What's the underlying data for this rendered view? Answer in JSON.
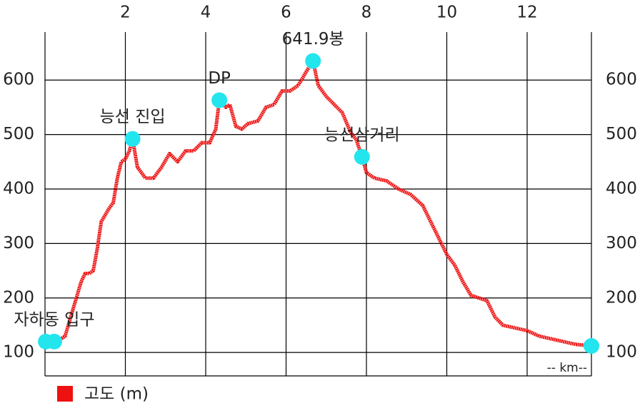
{
  "chart_data": {
    "type": "line",
    "xlabel": "-- km--",
    "xlim": [
      0,
      13.6
    ],
    "ylim": [
      57,
      688
    ],
    "xticks": [
      2,
      4,
      6,
      8,
      10,
      12
    ],
    "yticks": [
      100,
      200,
      300,
      400,
      500,
      600
    ],
    "grid": true,
    "x": [
      0.3,
      0.5,
      0.7,
      0.9,
      1.0,
      1.1,
      1.2,
      1.3,
      1.4,
      1.6,
      1.7,
      1.8,
      1.9,
      2.0,
      2.1,
      2.18,
      2.3,
      2.5,
      2.7,
      2.9,
      3.1,
      3.3,
      3.5,
      3.7,
      3.9,
      4.1,
      4.25,
      4.34,
      4.5,
      4.6,
      4.75,
      4.9,
      5.05,
      5.3,
      5.5,
      5.7,
      5.9,
      6.1,
      6.3,
      6.5,
      6.67,
      6.8,
      7.0,
      7.2,
      7.4,
      7.6,
      7.75,
      7.89,
      8.0,
      8.2,
      8.5,
      8.8,
      9.1,
      9.4,
      9.6,
      9.8,
      10.0,
      10.2,
      10.4,
      10.6,
      10.8,
      11.0,
      11.2,
      11.4,
      11.7,
      12.0,
      12.3,
      12.6,
      12.9,
      13.2,
      13.6
    ],
    "series": [
      {
        "name": "고도 (m)",
        "color": "#ee1111",
        "values": [
          120,
          130,
          180,
          230,
          245,
          245,
          250,
          290,
          340,
          365,
          375,
          420,
          450,
          455,
          470,
          492,
          440,
          420,
          420,
          440,
          465,
          450,
          470,
          470,
          485,
          485,
          510,
          563,
          550,
          555,
          515,
          510,
          520,
          525,
          550,
          555,
          580,
          580,
          590,
          615,
          635,
          590,
          570,
          555,
          540,
          505,
          490,
          459,
          430,
          420,
          415,
          400,
          390,
          370,
          340,
          310,
          280,
          260,
          230,
          205,
          200,
          195,
          165,
          150,
          145,
          140,
          130,
          125,
          120,
          115,
          112
        ]
      }
    ],
    "markers": {
      "color": "#22e5ee",
      "x": [
        0.02,
        0.23,
        2.18,
        4.34,
        6.67,
        7.89,
        13.6
      ],
      "values": [
        120,
        120,
        492,
        563,
        635,
        459,
        112
      ],
      "labels": [
        null,
        "자하동 입구",
        "능선 진입",
        "DP",
        "641.9봉",
        "능선삼거리",
        null
      ]
    }
  }
}
